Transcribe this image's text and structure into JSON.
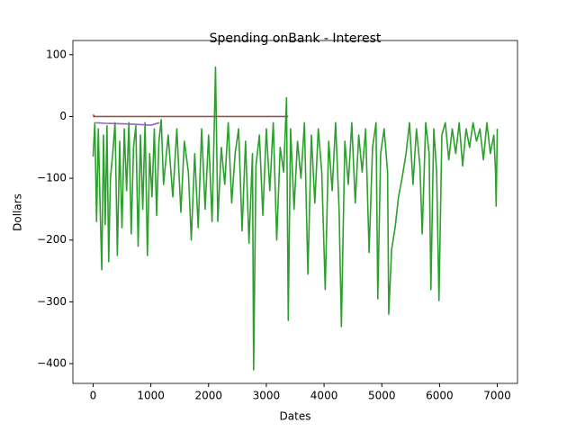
{
  "chart_data": {
    "type": "line",
    "title": "Spending onBank - Interest",
    "x_label": "Dates",
    "y_label": "Dollars",
    "xlim": [
      -350,
      7350
    ],
    "ylim": [
      -432,
      123
    ],
    "xticks": [
      0,
      1000,
      2000,
      3000,
      4000,
      5000,
      6000,
      7000
    ],
    "yticks": [
      {
        "value": -400,
        "label": "−400"
      },
      {
        "value": -300,
        "label": "−300"
      },
      {
        "value": -200,
        "label": "−200"
      },
      {
        "value": -100,
        "label": "−100"
      },
      0,
      100
    ],
    "series": [
      {
        "color": "#2ca02c",
        "x": [
          0,
          30,
          60,
          90,
          120,
          150,
          180,
          210,
          240,
          270,
          300,
          340,
          380,
          420,
          460,
          500,
          540,
          580,
          620,
          660,
          700,
          740,
          780,
          820,
          860,
          900,
          940,
          980,
          1020,
          1060,
          1100,
          1140,
          1180,
          1220,
          1300,
          1380,
          1450,
          1520,
          1580,
          1650,
          1700,
          1760,
          1820,
          1880,
          1940,
          2000,
          2060,
          2100,
          2120,
          2160,
          2220,
          2280,
          2340,
          2400,
          2460,
          2520,
          2580,
          2640,
          2700,
          2760,
          2780,
          2820,
          2880,
          2940,
          3000,
          3060,
          3120,
          3180,
          3240,
          3300,
          3350,
          3380,
          3420,
          3480,
          3540,
          3600,
          3660,
          3720,
          3780,
          3840,
          3900,
          3960,
          4020,
          4080,
          4140,
          4200,
          4260,
          4300,
          4360,
          4420,
          4480,
          4540,
          4600,
          4660,
          4720,
          4780,
          4840,
          4900,
          4930,
          4980,
          5040,
          5100,
          5120,
          5170,
          5230,
          5290,
          5350,
          5420,
          5480,
          5540,
          5600,
          5660,
          5700,
          5760,
          5820,
          5850,
          5900,
          5950,
          5990,
          6040,
          6100,
          6160,
          6220,
          6280,
          6340,
          6400,
          6460,
          6520,
          6580,
          6640,
          6700,
          6760,
          6820,
          6880,
          6940,
          6970,
          6980,
          7000
        ],
        "values": [
          -65,
          -10,
          -170,
          -20,
          -140,
          -248,
          -30,
          -175,
          -15,
          -235,
          -100,
          -60,
          -10,
          -225,
          -40,
          -180,
          -20,
          -120,
          -10,
          -190,
          -50,
          -15,
          -210,
          -30,
          -150,
          -10,
          -225,
          -60,
          -130,
          -20,
          -160,
          -40,
          -5,
          -110,
          -30,
          -130,
          -20,
          -155,
          -40,
          -90,
          -200,
          -60,
          -180,
          -20,
          -150,
          -30,
          -170,
          -10,
          80,
          -170,
          -50,
          -110,
          -10,
          -140,
          -60,
          -20,
          -185,
          -40,
          -205,
          -60,
          -410,
          -80,
          -30,
          -160,
          -20,
          -120,
          -10,
          -200,
          -50,
          -90,
          30,
          -330,
          -20,
          -150,
          -40,
          -100,
          -10,
          -255,
          -30,
          -140,
          -20,
          -90,
          -280,
          -40,
          -120,
          -10,
          -150,
          -340,
          -40,
          -110,
          -10,
          -140,
          -30,
          -90,
          -20,
          -220,
          -50,
          -10,
          -295,
          -60,
          -20,
          -90,
          -320,
          -215,
          -180,
          -130,
          -100,
          -60,
          -10,
          -110,
          -20,
          -80,
          -190,
          -10,
          -60,
          -280,
          -20,
          -90,
          -298,
          -30,
          -10,
          -70,
          -20,
          -60,
          -10,
          -80,
          -20,
          -50,
          -10,
          -40,
          -20,
          -70,
          -10,
          -60,
          -30,
          -90,
          -145,
          -20
        ]
      },
      {
        "color": "#8c564b",
        "x": [
          0,
          3380
        ],
        "values": [
          0,
          0
        ]
      },
      {
        "color": "#9467bd",
        "x": [
          50,
          200,
          600,
          1000,
          1150
        ],
        "values": [
          -10,
          -11,
          -12,
          -14,
          -10
        ]
      },
      {
        "color": "#d62728",
        "x": [
          0,
          30
        ],
        "values": [
          3,
          -1
        ]
      }
    ]
  }
}
